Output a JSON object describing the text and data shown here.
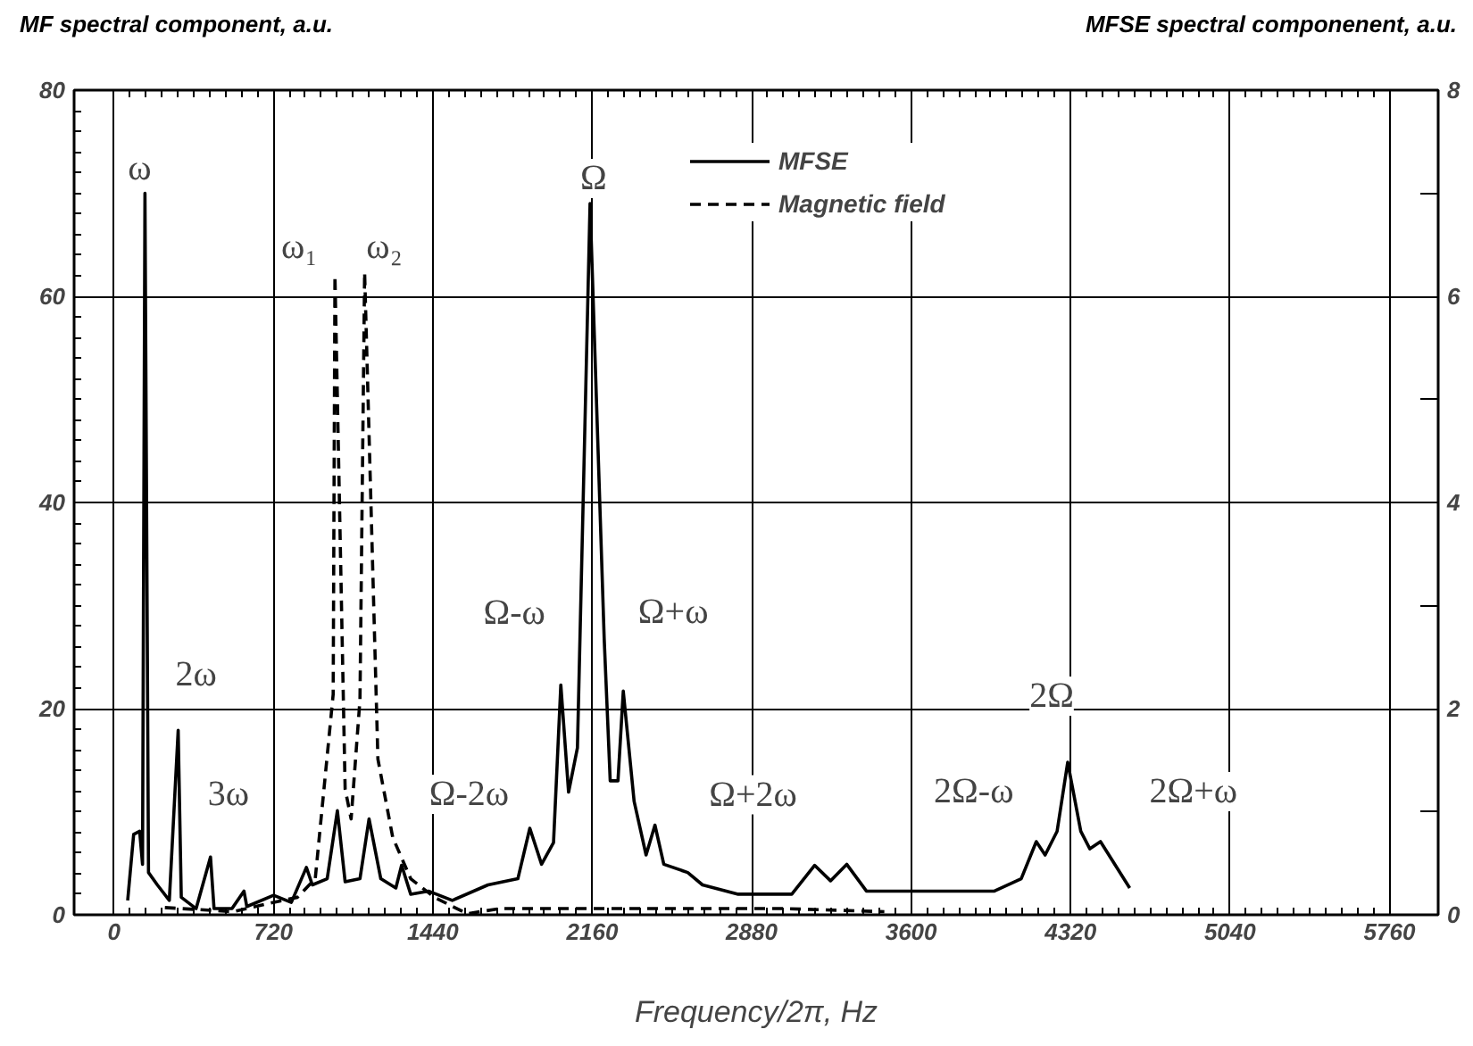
{
  "chart_data": {
    "type": "line",
    "xlabel": "Frequency/2π, Hz",
    "ylabel": "MF spectral component, a.u.",
    "y2label": "MFSE spectral componenent, a.u.",
    "xlim": [
      -180,
      5980
    ],
    "xticks": [
      0,
      720,
      1440,
      2160,
      2880,
      3600,
      4320,
      5040,
      5760
    ],
    "ylim": [
      0,
      80
    ],
    "yticks": [
      0,
      20,
      40,
      60,
      80
    ],
    "y2lim": [
      0,
      8
    ],
    "y2ticks": [
      0,
      2,
      4,
      6,
      8
    ],
    "grid": true,
    "legend": "top",
    "marker": "none",
    "series": [
      {
        "name": "MFSE",
        "color": "#000000",
        "axis": "y2",
        "line_style": "solid",
        "x": [
          62,
          89,
          116,
          129,
          140,
          156,
          196,
          250,
          290,
          304,
          371,
          436,
          452,
          533,
          587,
          600,
          721,
          801,
          869,
          896,
          963,
          1009,
          1044,
          1111,
          1152,
          1205,
          1273,
          1299,
          1340,
          1420,
          1528,
          1689,
          1824,
          1878,
          1931,
          1985,
          2018,
          2053,
          2093,
          2150,
          2214,
          2241,
          2276,
          2300,
          2349,
          2403,
          2443,
          2483,
          2591,
          2658,
          2819,
          3061,
          3164,
          3236,
          3309,
          3398,
          3976,
          4097,
          4165,
          4205,
          4259,
          4307,
          4366,
          4407,
          4455,
          4587
        ],
        "values": [
          0.14,
          0.78,
          0.81,
          0.49,
          7.0,
          0.41,
          0.29,
          0.14,
          1.79,
          0.17,
          0.06,
          0.56,
          0.06,
          0.06,
          0.23,
          0.08,
          0.19,
          0.12,
          0.46,
          0.29,
          0.35,
          1.01,
          0.32,
          0.35,
          0.93,
          0.35,
          0.26,
          0.48,
          0.2,
          0.23,
          0.14,
          0.29,
          0.35,
          0.84,
          0.49,
          0.7,
          2.23,
          1.19,
          1.62,
          6.9,
          2.67,
          1.3,
          1.3,
          2.17,
          1.1,
          0.58,
          0.87,
          0.49,
          0.41,
          0.29,
          0.2,
          0.2,
          0.48,
          0.33,
          0.49,
          0.23,
          0.23,
          0.35,
          0.71,
          0.58,
          0.81,
          1.48,
          0.81,
          0.64,
          0.71,
          0.26
        ]
      },
      {
        "name": "Magnetic field",
        "color": "#000000",
        "axis": "y",
        "line_style": "dashed",
        "x": [
          230,
          540,
          718,
          829,
          909,
          990,
          998,
          1044,
          1071,
          1111,
          1132,
          1192,
          1259,
          1340,
          1447,
          1595,
          1743,
          3035,
          3479
        ],
        "values": [
          0.7,
          0.3,
          1.2,
          1.7,
          3.5,
          21.4,
          62.0,
          12.2,
          9.3,
          20.9,
          62.3,
          15.1,
          7.5,
          3.5,
          1.7,
          0.1,
          0.6,
          0.6,
          0.3
        ]
      }
    ],
    "annotations": [
      {
        "text": "ω",
        "x": 140,
        "y": 70
      },
      {
        "text": "ω₁",
        "x": 998,
        "y": 62
      },
      {
        "text": "ω₂",
        "x": 1132,
        "y": 62.3
      },
      {
        "text": "Ω",
        "x": 2150,
        "y": 69
      },
      {
        "text": "2ω",
        "x": 290,
        "y": 17.9
      },
      {
        "text": "3ω",
        "x": 436,
        "y": 5.6
      },
      {
        "text": "Ω-ω",
        "x": 2018,
        "y": 22.3
      },
      {
        "text": "Ω+ω",
        "x": 2300,
        "y": 21.7
      },
      {
        "text": "Ω-2ω",
        "x": 1878,
        "y": 8.4
      },
      {
        "text": "Ω+2ω",
        "x": 2443,
        "y": 8.7
      },
      {
        "text": "2Ω",
        "x": 4307,
        "y": 14.8
      },
      {
        "text": "2Ω-ω",
        "x": 4165,
        "y": 7.1
      },
      {
        "text": "2Ω+ω",
        "x": 4455,
        "y": 7.1
      }
    ]
  }
}
